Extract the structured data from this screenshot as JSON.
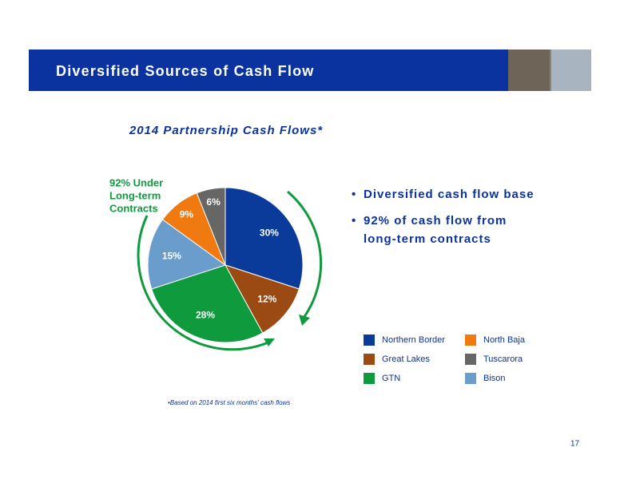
{
  "header": {
    "title": "Diversified Sources of Cash Flow"
  },
  "chart_data": {
    "type": "pie",
    "title": "2014 Partnership Cash Flows*",
    "categories": [
      "Northern Border",
      "Great Lakes",
      "GTN",
      "Bison",
      "North Baja",
      "Tuscarora"
    ],
    "values": [
      30,
      12,
      28,
      15,
      9,
      6
    ],
    "value_labels": [
      "30%",
      "12%",
      "28%",
      "15%",
      "9%",
      "6%"
    ],
    "colors": [
      "#0a3a9a",
      "#9a4a12",
      "#0f9a3e",
      "#6a9ccc",
      "#f07a10",
      "#666666"
    ],
    "annotation_lines": [
      "92% Under",
      "Long-term",
      "Contracts"
    ],
    "footnote": "•Based on 2014 first six months' cash flows"
  },
  "bullets": [
    "Diversified cash flow base",
    "92% of cash flow from",
    "long-term contracts"
  ],
  "page_number": "17"
}
